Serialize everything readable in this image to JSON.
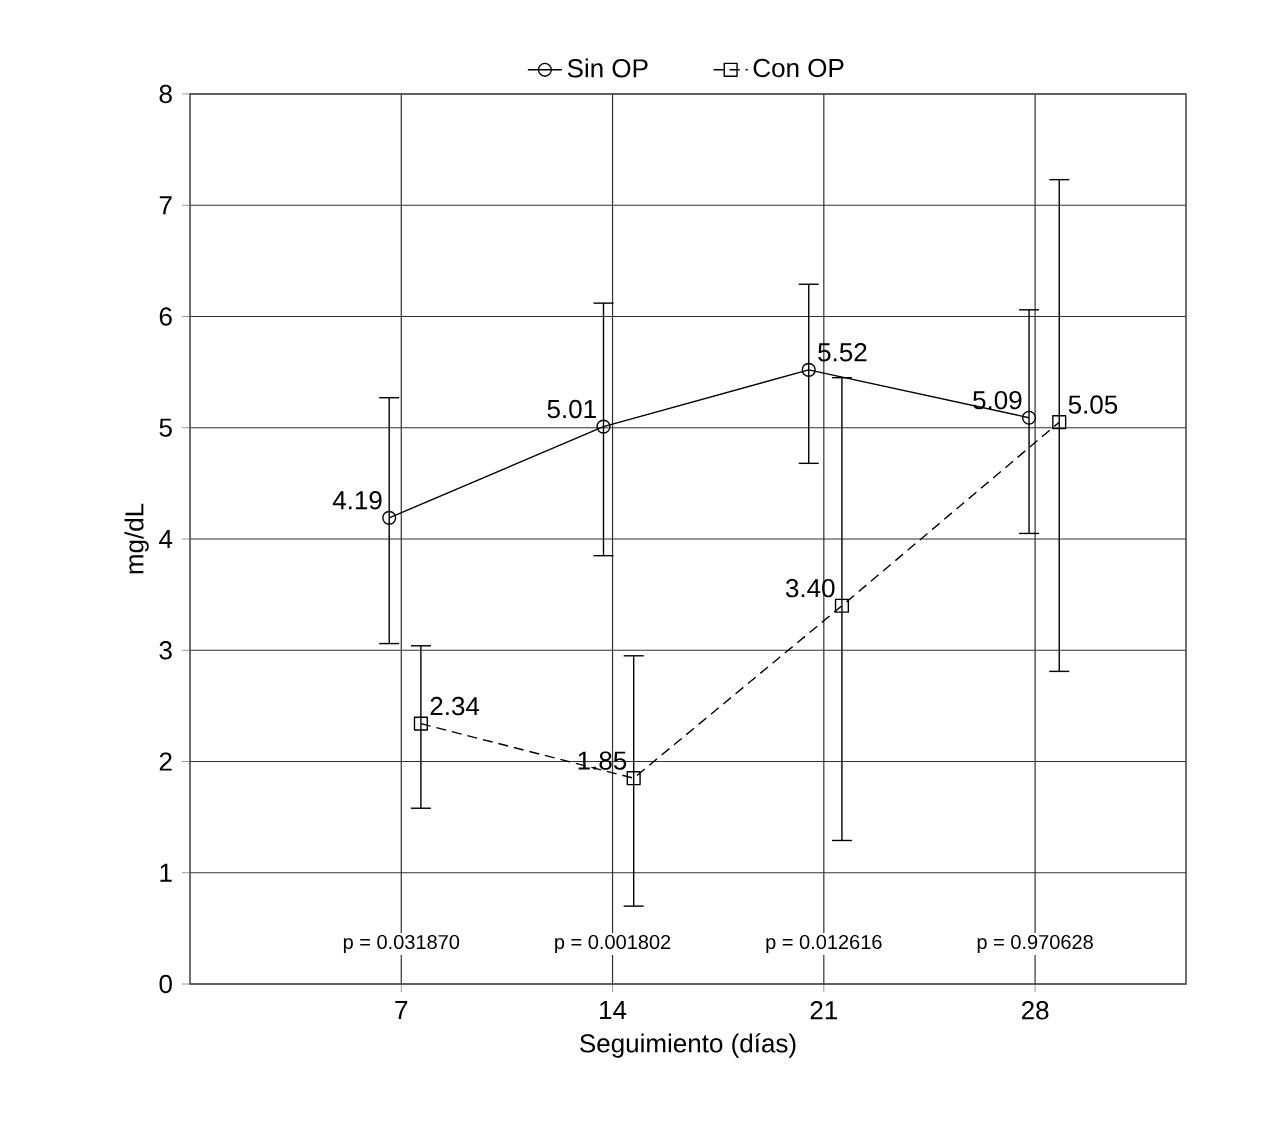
{
  "chart_data": {
    "type": "line",
    "xlabel": "Seguimiento (días)",
    "ylabel": "mg/dL",
    "xlim": [
      0,
      33
    ],
    "ylim": [
      0,
      8
    ],
    "xticks": [
      7,
      14,
      21,
      28
    ],
    "yticks": [
      0,
      1,
      2,
      3,
      4,
      5,
      6,
      7,
      8
    ],
    "grid": true,
    "legend": "top",
    "series": [
      {
        "name": "Sin OP",
        "color": "#000000",
        "marker": "circle",
        "line_style": "solid",
        "x": [
          6.6,
          13.7,
          20.5,
          27.8
        ],
        "values": [
          4.19,
          5.01,
          5.52,
          5.09
        ],
        "value_labels": [
          "4.19",
          "5.01",
          "5.52",
          "5.09"
        ],
        "errors": [
          [
            3.06,
            5.27
          ],
          [
            3.85,
            6.12
          ],
          [
            4.68,
            6.29
          ],
          [
            4.05,
            6.06
          ]
        ]
      },
      {
        "name": "Con OP",
        "color": "#000000",
        "marker": "square",
        "line_style": "dashed",
        "x": [
          7.65,
          14.7,
          21.6,
          28.8
        ],
        "values": [
          2.34,
          1.85,
          3.4,
          5.05
        ],
        "value_labels": [
          "2.34",
          "1.85",
          "3.40",
          "5.05"
        ],
        "errors": [
          [
            1.58,
            3.04
          ],
          [
            0.7,
            2.95
          ],
          [
            1.29,
            5.45
          ],
          [
            2.81,
            7.23
          ]
        ]
      }
    ],
    "annotations": [
      "p = 0.031870",
      "p = 0.001802",
      "p = 0.012616",
      "p = 0.970628"
    ]
  }
}
